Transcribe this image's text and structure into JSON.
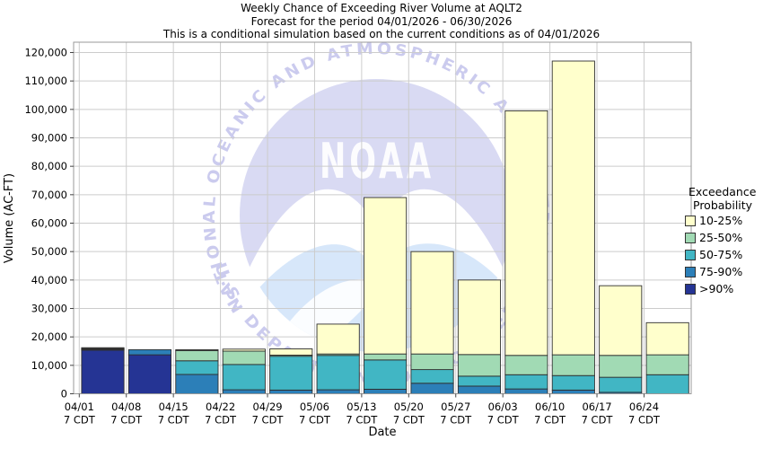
{
  "watermark": {
    "arc_top": "NATIONAL OCEANIC AND ATMOSPHERIC ADMINISTRATION",
    "noaa": "NOAA",
    "arc_bottom": "U.S. DEPARTMENT OF COMMERCE"
  },
  "chart_data": {
    "type": "stacked-bar",
    "title": "Weekly Chance of Exceeding River Volume at AQLT2",
    "subtitle": "Forecast for the period 04/01/2026 - 06/30/2026",
    "note": "This is a conditional simulation based on the current conditions as of 04/01/2026",
    "xlabel": "Date",
    "ylabel": "Volume (AC-FT)",
    "ylim": [
      0,
      120000
    ],
    "ytick_step": 10000,
    "grid": true,
    "bar_border_color": "#2f2f2f",
    "gridline_color": "#cccccc",
    "frame_color": "#999999",
    "categories": [
      "04/01",
      "04/08",
      "04/15",
      "04/22",
      "04/29",
      "05/06",
      "05/13",
      "05/20",
      "05/27",
      "06/03",
      "06/10",
      "06/17",
      "06/24"
    ],
    "category_sublabel": "7 CDT",
    "series": [
      {
        "name": ">90%",
        "color": "#253494",
        "values": [
          15300,
          13700,
          0,
          0,
          0,
          0,
          0,
          0,
          0,
          0,
          0,
          0,
          0
        ]
      },
      {
        "name": "75-90%",
        "color": "#2c7fb8",
        "values": [
          200,
          1800,
          6800,
          1400,
          1300,
          1400,
          1600,
          3700,
          2700,
          1700,
          1300,
          500,
          0
        ]
      },
      {
        "name": "50-75%",
        "color": "#41b6c4",
        "values": [
          200,
          0,
          4800,
          8900,
          11900,
          12100,
          10300,
          4800,
          3500,
          5000,
          5100,
          5300,
          6700
        ]
      },
      {
        "name": "25-50%",
        "color": "#a1dab4",
        "values": [
          200,
          0,
          3600,
          4700,
          400,
          500,
          2100,
          5500,
          7600,
          6800,
          7300,
          7700,
          7000
        ]
      },
      {
        "name": "10-25%",
        "color": "#ffffcc",
        "values": [
          300,
          0,
          300,
          700,
          2200,
          10500,
          55000,
          36000,
          26200,
          86000,
          103300,
          24500,
          11300
        ]
      }
    ],
    "bar_totals": [
      16200,
      15500,
      15500,
      15700,
      15800,
      24500,
      69000,
      50000,
      40000,
      99500,
      117000,
      38000,
      25000
    ],
    "legend": {
      "title_line1": "Exceedance",
      "title_line2": "Probability",
      "position": "right",
      "order": "top-is-lowest-probability"
    }
  }
}
